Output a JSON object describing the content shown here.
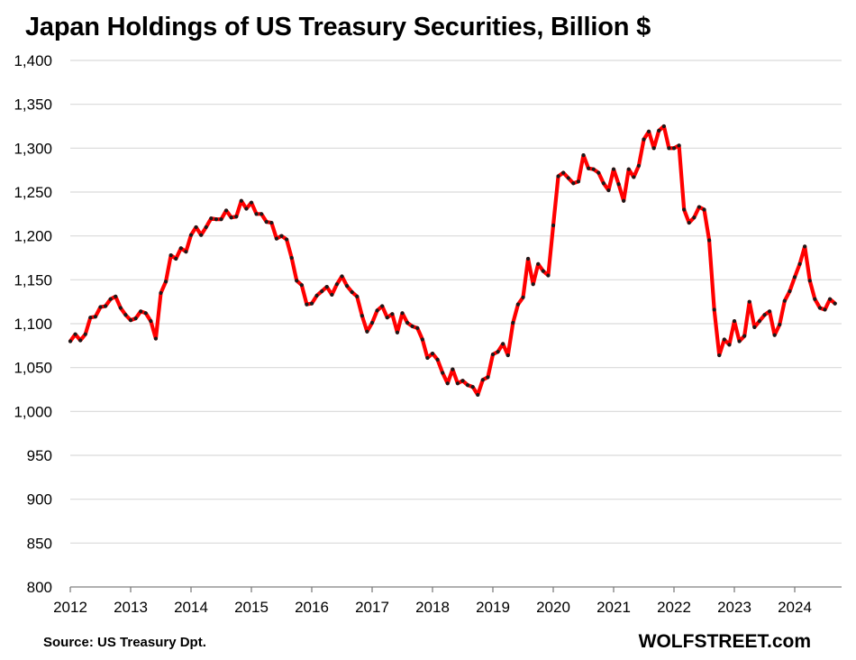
{
  "chart_data": {
    "type": "line",
    "title": "Japan Holdings of US Treasury Securities, Billion $",
    "source": "Source: US Treasury  Dpt.",
    "brand": "WOLFSTREET.com",
    "xlabel": "",
    "ylabel": "",
    "ylim": [
      800,
      1400
    ],
    "yticks": [
      800,
      850,
      900,
      950,
      1000,
      1050,
      1100,
      1150,
      1200,
      1250,
      1300,
      1350,
      1400
    ],
    "ytick_labels": [
      "800",
      "850",
      "900",
      "950",
      "1,000",
      "1,050",
      "1,100",
      "1,150",
      "1,200",
      "1,250",
      "1,300",
      "1,350",
      "1,400"
    ],
    "xlim": [
      2012.0,
      2024.83
    ],
    "xtick_labels": [
      "2012",
      "2013",
      "2014",
      "2015",
      "2016",
      "2017",
      "2018",
      "2019",
      "2020",
      "2021",
      "2022",
      "2023",
      "2024"
    ],
    "grid": true,
    "colors": {
      "line": "#ff0000",
      "marker": "#1a1a1a",
      "grid": "#d9d9d9",
      "axis": "#808080"
    },
    "series": [
      {
        "name": "Japan Holdings of US Treasury Securities",
        "start_year": 2012,
        "start_month": 1,
        "values": [
          1080,
          1088,
          1081,
          1088,
          1107,
          1108,
          1119,
          1120,
          1128,
          1131,
          1118,
          1110,
          1104,
          1106,
          1114,
          1112,
          1103,
          1083,
          1135,
          1148,
          1178,
          1174,
          1186,
          1182,
          1201,
          1210,
          1201,
          1210,
          1220,
          1219,
          1219,
          1229,
          1221,
          1222,
          1240,
          1231,
          1238,
          1225,
          1225,
          1216,
          1215,
          1197,
          1200,
          1196,
          1175,
          1149,
          1144,
          1122,
          1123,
          1132,
          1137,
          1142,
          1133,
          1145,
          1154,
          1143,
          1136,
          1131,
          1109,
          1091,
          1101,
          1115,
          1120,
          1107,
          1111,
          1090,
          1112,
          1101,
          1097,
          1095,
          1082,
          1061,
          1066,
          1059,
          1044,
          1032,
          1048,
          1032,
          1035,
          1030,
          1028,
          1019,
          1036,
          1039,
          1065,
          1068,
          1077,
          1064,
          1101,
          1122,
          1130,
          1174,
          1145,
          1168,
          1160,
          1155,
          1212,
          1268,
          1272,
          1266,
          1260,
          1262,
          1292,
          1277,
          1276,
          1272,
          1260,
          1252,
          1276,
          1259,
          1240,
          1276,
          1267,
          1280,
          1310,
          1319,
          1300,
          1320,
          1325,
          1300,
          1300,
          1303,
          1230,
          1215,
          1221,
          1233,
          1230,
          1195,
          1116,
          1064,
          1082,
          1076,
          1103,
          1080,
          1086,
          1125,
          1096,
          1103,
          1110,
          1114,
          1087,
          1099,
          1126,
          1137,
          1153,
          1168,
          1188,
          1149,
          1128,
          1118,
          1116,
          1128,
          1123
        ]
      }
    ]
  }
}
